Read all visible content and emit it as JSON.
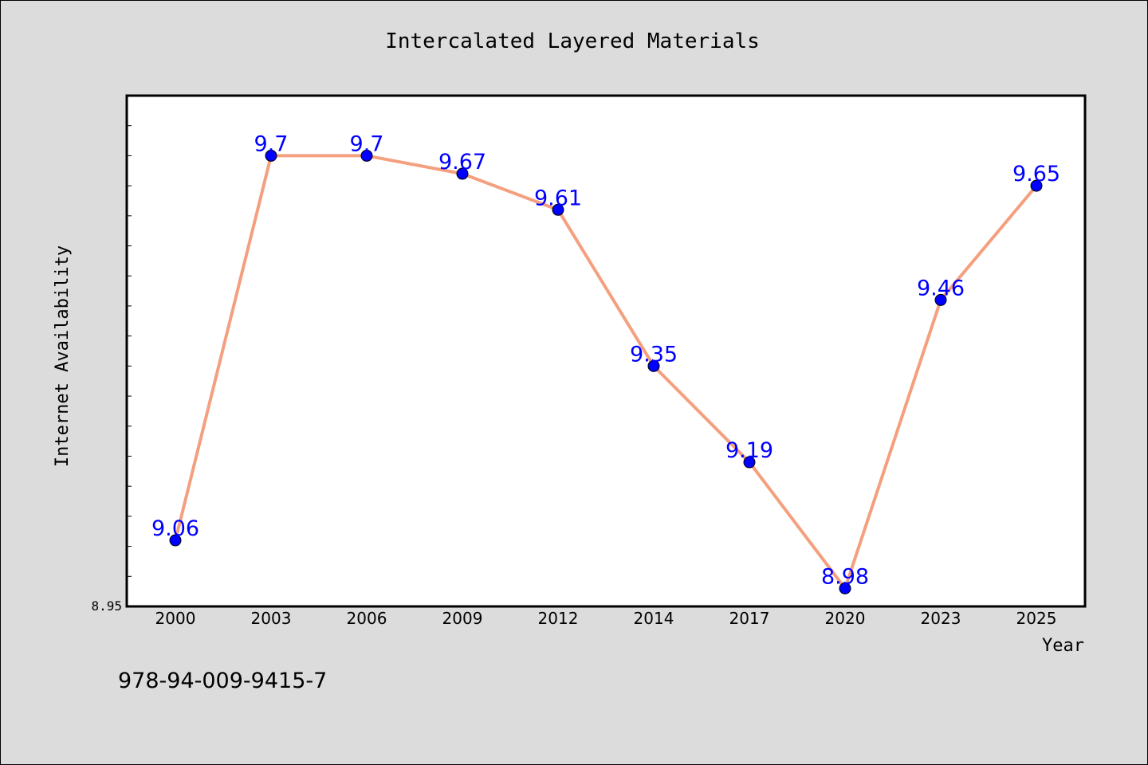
{
  "chart_data": {
    "type": "line",
    "title": "Intercalated Layered Materials",
    "xlabel": "Year",
    "ylabel": "Internet Availability",
    "categories": [
      "2000",
      "2003",
      "2006",
      "2009",
      "2012",
      "2014",
      "2017",
      "2020",
      "2023",
      "2025"
    ],
    "series": [
      {
        "values": [
          9.06,
          9.7,
          9.7,
          9.67,
          9.61,
          9.35,
          9.19,
          8.98,
          9.46,
          9.65
        ]
      }
    ],
    "data_labels": [
      "9.06",
      "9.7",
      "9.7",
      "9.67",
      "9.61",
      "9.35",
      "9.19",
      "8.98",
      "9.46",
      "9.65"
    ],
    "ylim": [
      8.95,
      9.8
    ],
    "yticks_labeled": [
      "8.95"
    ],
    "grid": false,
    "legend": "none",
    "line_color": "#f4a07f",
    "marker_color": "#0000ff",
    "label_color": "#0000ff"
  },
  "footer_text": "978-94-009-9415-7"
}
